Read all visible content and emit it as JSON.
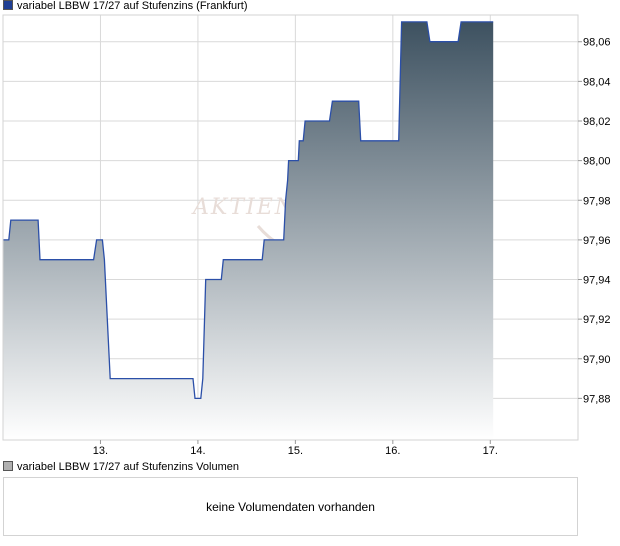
{
  "legend": {
    "price_label": "variabel LBBW 17/27 auf Stufenzins (Frankfurt)",
    "volume_label": "variabel LBBW 17/27 auf Stufenzins Volumen",
    "price_color": "#1f3f94",
    "volume_color": "#b0b0b0"
  },
  "watermark": "AKTIEN",
  "volume_panel": {
    "message": "keine Volumendaten vorhanden"
  },
  "colors": {
    "line": "#2b4fa8",
    "fill_top": "#3d5160",
    "fill_bottom": "#ffffff",
    "grid": "#d9d9d9"
  },
  "chart_data": {
    "type": "area",
    "x_tick_labels": [
      "13.",
      "14.",
      "15.",
      "16.",
      "17."
    ],
    "x_ticks": [
      13,
      14,
      15,
      16,
      17
    ],
    "xlim": [
      12.0,
      17.9
    ],
    "y_tick_labels": [
      "97,88",
      "97,90",
      "97,92",
      "97,94",
      "97,96",
      "97,98",
      "98,00",
      "98,02",
      "98,04",
      "98,06"
    ],
    "y_ticks": [
      97.88,
      97.9,
      97.92,
      97.94,
      97.96,
      97.98,
      98.0,
      98.02,
      98.04,
      98.06
    ],
    "ylim": [
      97.859,
      98.0735
    ],
    "grid": true,
    "series": [
      {
        "points": [
          [
            12.0,
            97.96
          ],
          [
            12.06,
            97.96
          ],
          [
            12.08,
            97.97
          ],
          [
            12.36,
            97.97
          ],
          [
            12.38,
            97.95
          ],
          [
            12.93,
            97.95
          ],
          [
            12.96,
            97.96
          ],
          [
            13.02,
            97.96
          ],
          [
            13.04,
            97.95
          ],
          [
            13.1,
            97.89
          ],
          [
            13.95,
            97.89
          ],
          [
            13.97,
            97.88
          ],
          [
            14.03,
            97.88
          ],
          [
            14.05,
            97.89
          ],
          [
            14.08,
            97.94
          ],
          [
            14.24,
            97.94
          ],
          [
            14.26,
            97.95
          ],
          [
            14.66,
            97.95
          ],
          [
            14.68,
            97.96
          ],
          [
            14.88,
            97.96
          ],
          [
            14.9,
            97.98
          ],
          [
            14.92,
            97.99
          ],
          [
            14.93,
            98.0
          ],
          [
            15.03,
            98.0
          ],
          [
            15.04,
            98.01
          ],
          [
            15.08,
            98.01
          ],
          [
            15.1,
            98.02
          ],
          [
            15.35,
            98.02
          ],
          [
            15.38,
            98.03
          ],
          [
            15.65,
            98.03
          ],
          [
            15.67,
            98.01
          ],
          [
            16.06,
            98.01
          ],
          [
            16.09,
            98.07
          ],
          [
            16.35,
            98.07
          ],
          [
            16.38,
            98.06
          ],
          [
            16.67,
            98.06
          ],
          [
            16.7,
            98.07
          ],
          [
            17.03,
            98.07
          ]
        ]
      }
    ]
  }
}
